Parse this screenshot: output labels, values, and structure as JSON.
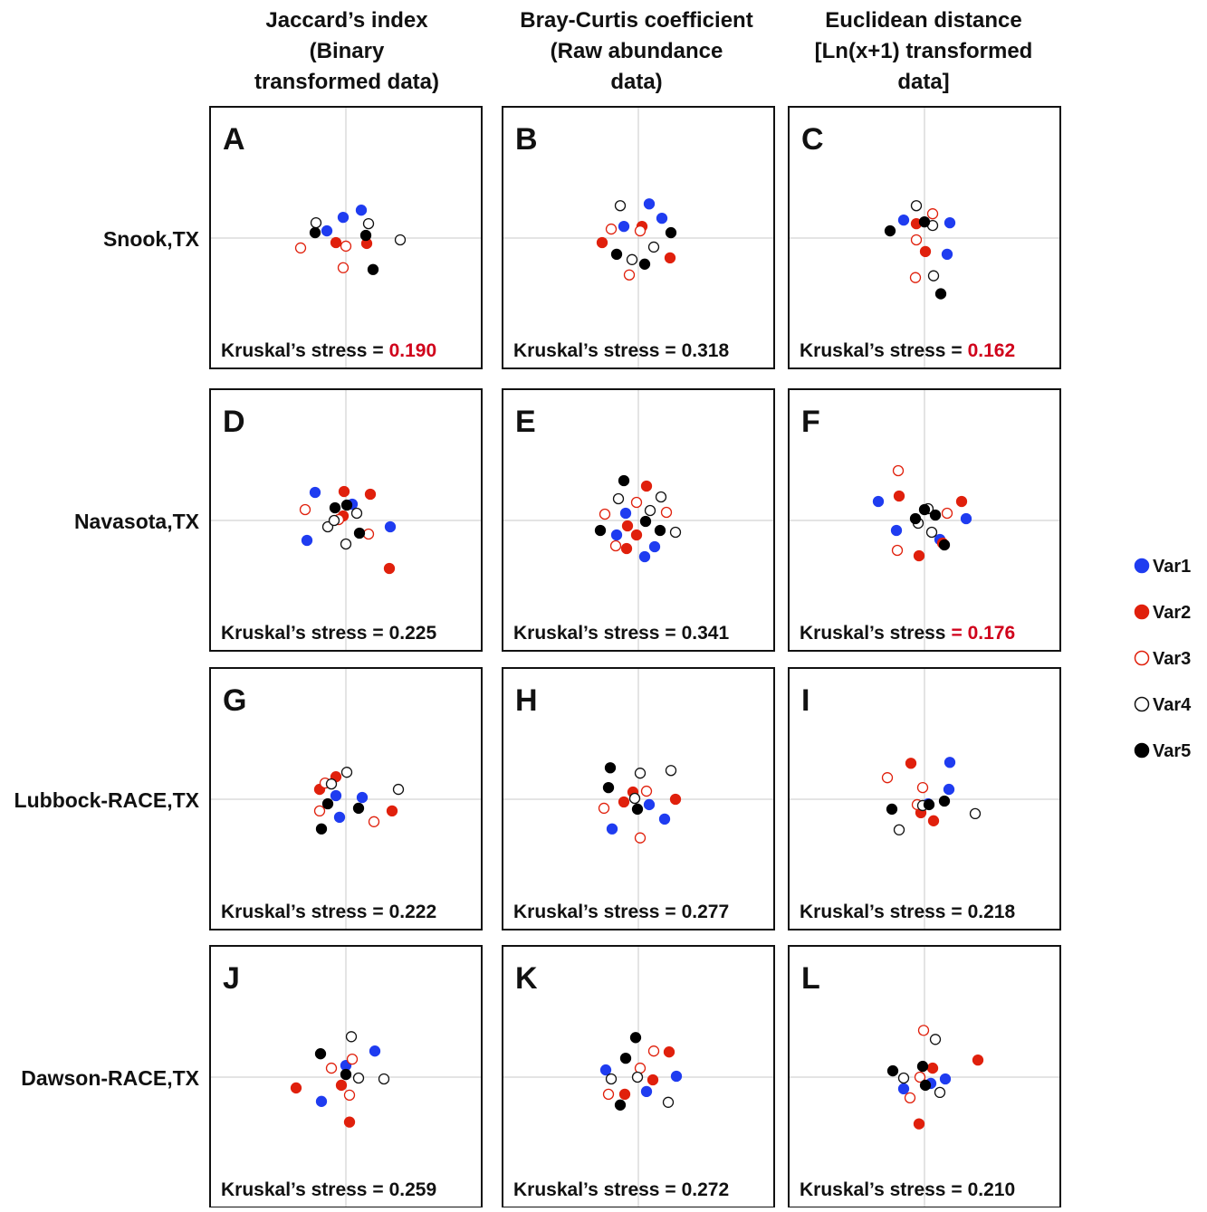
{
  "column_titles": [
    [
      "Jaccard’s index",
      "(Binary",
      "transformed data)"
    ],
    [
      "Bray-Curtis coefficient",
      "(Raw abundance",
      "data)"
    ],
    [
      "Euclidean distance",
      "[Ln(x+1) transformed",
      "data]"
    ]
  ],
  "row_labels": [
    "Snook,TX",
    "Navasota,TX",
    "Lubbock-RACE,TX",
    "Dawson-RACE,TX"
  ],
  "legend": [
    {
      "name": "Var1",
      "color": "#1f3cf0",
      "filled": true
    },
    {
      "name": "Var2",
      "color": "#e0200c",
      "filled": true
    },
    {
      "name": "Var3",
      "color": "#e0200c",
      "filled": false
    },
    {
      "name": "Var4",
      "color": "#111111",
      "filled": false
    },
    {
      "name": "Var5",
      "color": "#000000",
      "filled": true
    }
  ],
  "chart_data": [
    {
      "type": "scatter",
      "panel_label": "A",
      "stress_text": "Kruskal’s stress  =",
      "stress": "0.190",
      "stress_color": "#d0021b",
      "xlim": [
        -1.5,
        1.5
      ],
      "ylim": [
        -1.46,
        1.46
      ],
      "series": [
        {
          "x": [
            -0.03,
            -0.21,
            0.17
          ],
          "y": [
            0.23,
            0.08,
            0.31
          ]
        },
        {
          "x": [
            -0.11,
            0.23
          ],
          "y": [
            -0.05,
            -0.06
          ]
        },
        {
          "x": [
            -0.5,
            0,
            -0.03
          ],
          "y": [
            -0.11,
            -0.09,
            -0.33
          ]
        },
        {
          "x": [
            -0.33,
            0.25,
            0.6
          ],
          "y": [
            0.17,
            0.16,
            -0.02
          ]
        },
        {
          "x": [
            -0.34,
            0.22,
            0.3
          ],
          "y": [
            0.06,
            0.03,
            -0.35
          ]
        }
      ]
    },
    {
      "type": "scatter",
      "panel_label": "B",
      "stress_text": "Kruskal’s stress  =",
      "stress": "0.318",
      "xlim": [
        -1.5,
        1.5
      ],
      "ylim": [
        -1.46,
        1.46
      ],
      "series": [
        {
          "x": [
            0.12,
            -0.16,
            0.26
          ],
          "y": [
            0.38,
            0.13,
            0.22
          ]
        },
        {
          "x": [
            0.04,
            -0.4,
            0.35
          ],
          "y": [
            0.13,
            -0.05,
            -0.22
          ]
        },
        {
          "x": [
            -0.3,
            0.02,
            -0.1
          ],
          "y": [
            0.1,
            0.08,
            -0.41
          ]
        },
        {
          "x": [
            -0.2,
            0.17,
            -0.07
          ],
          "y": [
            0.36,
            -0.1,
            -0.24
          ]
        },
        {
          "x": [
            0.36,
            -0.24,
            0.07
          ],
          "y": [
            0.06,
            -0.18,
            -0.29
          ]
        }
      ]
    },
    {
      "type": "scatter",
      "panel_label": "C",
      "stress_text": "Kruskal’s stress =",
      "stress": "0.162",
      "stress_color": "#d0021b",
      "xlim": [
        -1.5,
        1.5
      ],
      "ylim": [
        -1.46,
        1.46
      ],
      "series": [
        {
          "x": [
            -0.23,
            0.28,
            0.25
          ],
          "y": [
            0.2,
            0.17,
            -0.18
          ]
        },
        {
          "x": [
            -0.09,
            0.01
          ],
          "y": [
            0.16,
            -0.15
          ]
        },
        {
          "x": [
            0.09,
            -0.09,
            -0.1
          ],
          "y": [
            0.27,
            -0.02,
            -0.44
          ]
        },
        {
          "x": [
            -0.09,
            0.09,
            0.1
          ],
          "y": [
            0.36,
            0.14,
            -0.42
          ]
        },
        {
          "x": [
            -0.38,
            0,
            0.18
          ],
          "y": [
            0.08,
            0.18,
            -0.62
          ]
        }
      ]
    },
    {
      "type": "scatter",
      "panel_label": "D",
      "stress_text": "Kruskal’s stress =",
      "stress": "0.225",
      "xlim": [
        -1.5,
        1.5
      ],
      "ylim": [
        -1.45,
        1.45
      ],
      "series": [
        {
          "x": [
            -0.34,
            0.07,
            0.49,
            -0.43
          ],
          "y": [
            0.31,
            0.18,
            -0.07,
            -0.22
          ]
        },
        {
          "x": [
            -0.02,
            0.27,
            -0.03,
            0.48
          ],
          "y": [
            0.32,
            0.29,
            0.05,
            -0.53
          ]
        },
        {
          "x": [
            -0.45,
            0.25,
            -0.08
          ],
          "y": [
            0.12,
            -0.15,
            0.01
          ]
        },
        {
          "x": [
            0.12,
            -0.2,
            0,
            -0.13
          ],
          "y": [
            0.08,
            -0.07,
            -0.26,
            0
          ]
        },
        {
          "x": [
            -0.12,
            0.01,
            0.15
          ],
          "y": [
            0.14,
            0.17,
            -0.14
          ]
        }
      ]
    },
    {
      "type": "scatter",
      "panel_label": "E",
      "stress_text": "Kruskal’s stress  =",
      "stress": "0.341",
      "xlim": [
        -1.5,
        1.5
      ],
      "ylim": [
        -1.45,
        1.45
      ],
      "series": [
        {
          "x": [
            -0.14,
            -0.24,
            0.18,
            0.07
          ],
          "y": [
            0.08,
            -0.16,
            -0.29,
            -0.4
          ]
        },
        {
          "x": [
            0.09,
            -0.12,
            -0.13,
            -0.02
          ],
          "y": [
            0.38,
            -0.06,
            -0.31,
            -0.16
          ]
        },
        {
          "x": [
            -0.02,
            -0.37,
            0.31,
            -0.25
          ],
          "y": [
            0.2,
            0.07,
            0.09,
            -0.28
          ]
        },
        {
          "x": [
            -0.22,
            0.25,
            0.13,
            0.41
          ],
          "y": [
            0.24,
            0.26,
            0.11,
            -0.13
          ]
        },
        {
          "x": [
            -0.16,
            0.08,
            -0.42,
            0.24
          ],
          "y": [
            0.44,
            -0.01,
            -0.11,
            -0.11
          ]
        }
      ]
    },
    {
      "type": "scatter",
      "panel_label": "F",
      "stress_text": "Kruskal’s stress",
      "stress": "= 0.176",
      "stress_color": "#d0021b",
      "xlim": [
        -1.5,
        1.5
      ],
      "ylim": [
        -1.45,
        1.45
      ],
      "series": [
        {
          "x": [
            -0.51,
            -0.31,
            0.46,
            0.17
          ],
          "y": [
            0.21,
            -0.11,
            0.02,
            -0.21
          ]
        },
        {
          "x": [
            -0.28,
            0.41,
            -0.06,
            0.2
          ],
          "y": [
            0.27,
            0.21,
            -0.39,
            -0.25
          ]
        },
        {
          "x": [
            -0.29,
            0.25,
            -0.3
          ],
          "y": [
            0.55,
            0.08,
            -0.33
          ]
        },
        {
          "x": [
            -0.07,
            0.04,
            0.08
          ],
          "y": [
            -0.03,
            0.13,
            -0.13
          ]
        },
        {
          "x": [
            0,
            -0.1,
            0.12,
            0.22
          ],
          "y": [
            0.12,
            0.02,
            0.06,
            -0.27
          ]
        }
      ]
    },
    {
      "type": "scatter",
      "panel_label": "G",
      "stress_text": "Kruskal’s stress  =",
      "stress": "0.222",
      "xlim": [
        -1.5,
        1.5
      ],
      "ylim": [
        -1.46,
        1.46
      ],
      "series": [
        {
          "x": [
            -0.11,
            0.18,
            -0.07
          ],
          "y": [
            0.04,
            0.02,
            -0.2
          ]
        },
        {
          "x": [
            -0.11,
            -0.29,
            0.51
          ],
          "y": [
            0.25,
            0.11,
            -0.13
          ]
        },
        {
          "x": [
            -0.23,
            -0.29,
            0.31
          ],
          "y": [
            0.18,
            -0.13,
            -0.25
          ]
        },
        {
          "x": [
            0.01,
            -0.16,
            0.58
          ],
          "y": [
            0.3,
            0.17,
            0.11
          ]
        },
        {
          "x": [
            -0.2,
            0.14,
            -0.27
          ],
          "y": [
            -0.05,
            -0.1,
            -0.33
          ]
        }
      ]
    },
    {
      "type": "scatter",
      "panel_label": "H",
      "stress_text": "Kruskal’s stress  =",
      "stress": "0.277",
      "xlim": [
        -1.5,
        1.5
      ],
      "ylim": [
        -1.46,
        1.46
      ],
      "series": [
        {
          "x": [
            0.12,
            0.29,
            -0.29
          ],
          "y": [
            -0.06,
            -0.22,
            -0.33
          ]
        },
        {
          "x": [
            -0.16,
            -0.06,
            0.41
          ],
          "y": [
            -0.03,
            0.08,
            0
          ]
        },
        {
          "x": [
            -0.38,
            0.09,
            0.02
          ],
          "y": [
            -0.1,
            0.09,
            -0.43
          ]
        },
        {
          "x": [
            0.02,
            0.36,
            -0.04
          ],
          "y": [
            0.29,
            0.32,
            0.01
          ]
        },
        {
          "x": [
            -0.31,
            -0.33,
            -0.01
          ],
          "y": [
            0.35,
            0.13,
            -0.11
          ]
        }
      ]
    },
    {
      "type": "scatter",
      "panel_label": "I",
      "stress_text": "Kruskal’s stress  =",
      "stress": "0.218",
      "xlim": [
        -1.5,
        1.5
      ],
      "ylim": [
        -1.46,
        1.46
      ],
      "series": [
        {
          "x": [
            0.28,
            0.27,
            0.04
          ],
          "y": [
            0.41,
            0.11,
            -0.05
          ]
        },
        {
          "x": [
            -0.15,
            -0.04,
            0.1
          ],
          "y": [
            0.4,
            -0.15,
            -0.24
          ]
        },
        {
          "x": [
            -0.41,
            -0.02,
            -0.08
          ],
          "y": [
            0.24,
            0.13,
            -0.06
          ]
        },
        {
          "x": [
            -0.02,
            -0.28,
            0.56
          ],
          "y": [
            -0.07,
            -0.34,
            -0.16
          ]
        },
        {
          "x": [
            -0.36,
            0.05,
            0.22
          ],
          "y": [
            -0.11,
            -0.06,
            -0.02
          ]
        }
      ]
    },
    {
      "type": "scatter",
      "panel_label": "J",
      "stress_text": "Kruskal’s stress  =",
      "stress": "0.259",
      "xlim": [
        -1.5,
        1.5
      ],
      "ylim": [
        -1.46,
        1.46
      ],
      "series": [
        {
          "x": [
            0.32,
            0,
            -0.27
          ],
          "y": [
            0.29,
            0.13,
            -0.27
          ]
        },
        {
          "x": [
            -0.55,
            -0.05,
            0.04
          ],
          "y": [
            -0.12,
            -0.09,
            -0.5
          ]
        },
        {
          "x": [
            0.07,
            -0.16,
            0.04
          ],
          "y": [
            0.2,
            0.1,
            -0.2
          ]
        },
        {
          "x": [
            0.06,
            0.14,
            0.42
          ],
          "y": [
            0.45,
            -0.01,
            -0.02
          ]
        },
        {
          "x": [
            -0.28,
            0
          ],
          "y": [
            0.26,
            0.03
          ]
        }
      ]
    },
    {
      "type": "scatter",
      "panel_label": "K",
      "stress_text": "Kruskal’s stress  =",
      "stress": "0.272",
      "xlim": [
        -1.5,
        1.5
      ],
      "ylim": [
        -1.46,
        1.46
      ],
      "series": [
        {
          "x": [
            -0.36,
            0.09,
            0.42
          ],
          "y": [
            0.08,
            -0.16,
            0.01
          ]
        },
        {
          "x": [
            0.34,
            -0.15,
            0.16
          ],
          "y": [
            0.28,
            -0.19,
            -0.03
          ]
        },
        {
          "x": [
            0.17,
            0.02,
            -0.33
          ],
          "y": [
            0.29,
            0.1,
            -0.19
          ]
        },
        {
          "x": [
            -0.3,
            -0.01,
            0.33
          ],
          "y": [
            -0.02,
            0,
            -0.28
          ]
        },
        {
          "x": [
            -0.03,
            -0.14,
            -0.2
          ],
          "y": [
            0.44,
            0.21,
            -0.31
          ]
        }
      ]
    },
    {
      "type": "scatter",
      "panel_label": "L",
      "stress_text": "Kruskal’s stress =",
      "stress": "0.210",
      "xlim": [
        -1.5,
        1.5
      ],
      "ylim": [
        -1.46,
        1.46
      ],
      "series": [
        {
          "x": [
            0.23,
            -0.23,
            0.07
          ],
          "y": [
            -0.02,
            -0.13,
            -0.07
          ]
        },
        {
          "x": [
            0.59,
            0.09,
            -0.06
          ],
          "y": [
            0.19,
            0.1,
            -0.52
          ]
        },
        {
          "x": [
            -0.01,
            -0.05,
            -0.16
          ],
          "y": [
            0.52,
            0,
            -0.23
          ]
        },
        {
          "x": [
            0.12,
            -0.23,
            0.17
          ],
          "y": [
            0.42,
            -0.01,
            -0.17
          ]
        },
        {
          "x": [
            -0.35,
            -0.02,
            0.01
          ],
          "y": [
            0.07,
            0.12,
            -0.09
          ]
        }
      ]
    }
  ]
}
